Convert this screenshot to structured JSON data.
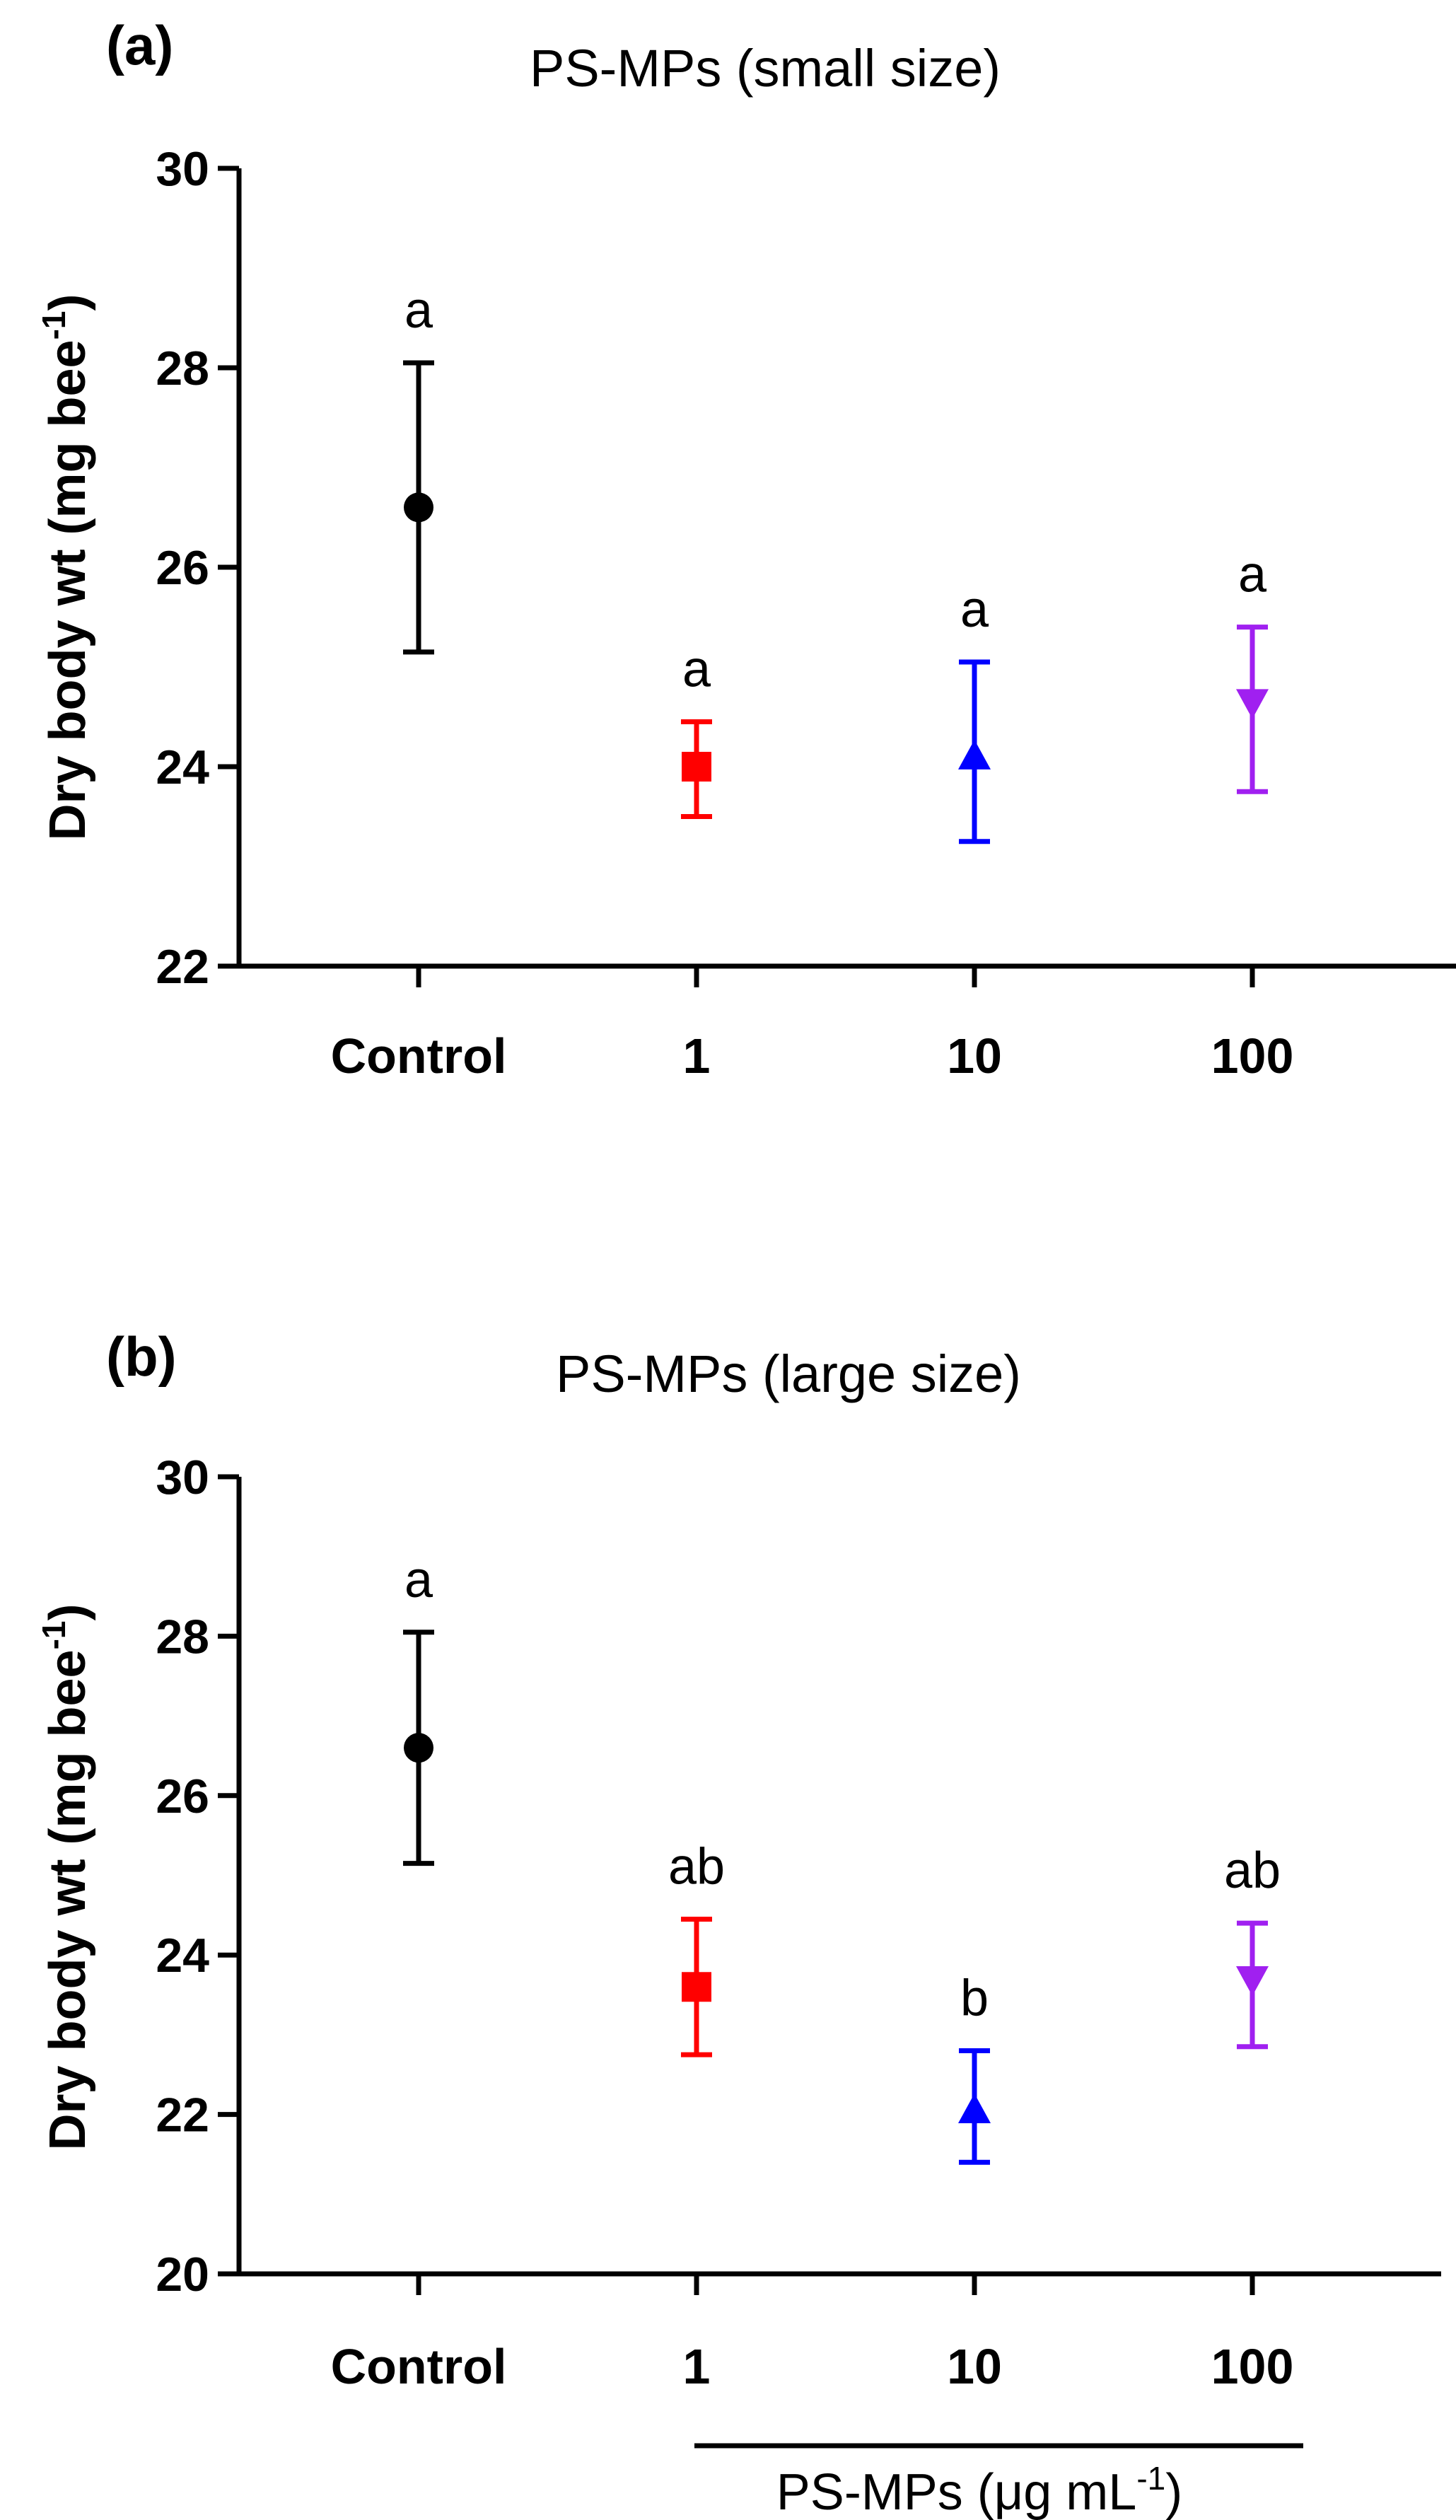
{
  "chart_data": [
    {
      "panel_label": "(a)",
      "type": "scatter",
      "title": "PS-MPs (small size)",
      "ylabel": "Dry body wt (mg bee",
      "ylabel_sup": "-1",
      "ylabel_close": ")",
      "ylim": [
        22,
        30
      ],
      "yticks": [
        22,
        24,
        26,
        28,
        30
      ],
      "categories": [
        "Control",
        "1",
        "10",
        "100"
      ],
      "points": [
        {
          "category": "Control",
          "mean": 26.6,
          "err_low": 25.15,
          "err_high": 28.05,
          "color": "#000000",
          "marker": "circle",
          "letter": "a"
        },
        {
          "category": "1",
          "mean": 24.0,
          "err_low": 23.5,
          "err_high": 24.45,
          "color": "#ff0000",
          "marker": "square",
          "letter": "a"
        },
        {
          "category": "10",
          "mean": 24.1,
          "err_low": 23.25,
          "err_high": 25.05,
          "color": "#0000ff",
          "marker": "triangle-up",
          "letter": "a"
        },
        {
          "category": "100",
          "mean": 24.65,
          "err_low": 23.75,
          "err_high": 25.4,
          "color": "#a020f0",
          "marker": "triangle-down",
          "letter": "a"
        }
      ]
    },
    {
      "panel_label": "(b)",
      "type": "scatter",
      "title": "PS-MPs (large size)",
      "ylabel": "Dry body wt (mg bee",
      "ylabel_sup": "-1",
      "ylabel_close": ")",
      "ylim": [
        20,
        30
      ],
      "yticks": [
        20,
        22,
        24,
        26,
        28,
        30
      ],
      "categories": [
        "Control",
        "1",
        "10",
        "100"
      ],
      "points": [
        {
          "category": "Control",
          "mean": 26.6,
          "err_low": 25.15,
          "err_high": 28.05,
          "color": "#000000",
          "marker": "circle",
          "letter": "a"
        },
        {
          "category": "1",
          "mean": 23.6,
          "err_low": 22.75,
          "err_high": 24.45,
          "color": "#ff0000",
          "marker": "square",
          "letter": "ab"
        },
        {
          "category": "10",
          "mean": 22.05,
          "err_low": 21.4,
          "err_high": 22.8,
          "color": "#0000ff",
          "marker": "triangle-up",
          "letter": "b"
        },
        {
          "category": "100",
          "mean": 23.7,
          "err_low": 22.85,
          "err_high": 24.4,
          "color": "#a020f0",
          "marker": "triangle-down",
          "letter": "ab"
        }
      ],
      "group_label": "PS-MPs (μg mL",
      "group_label_sup": "-1",
      "group_label_close": ")"
    }
  ]
}
